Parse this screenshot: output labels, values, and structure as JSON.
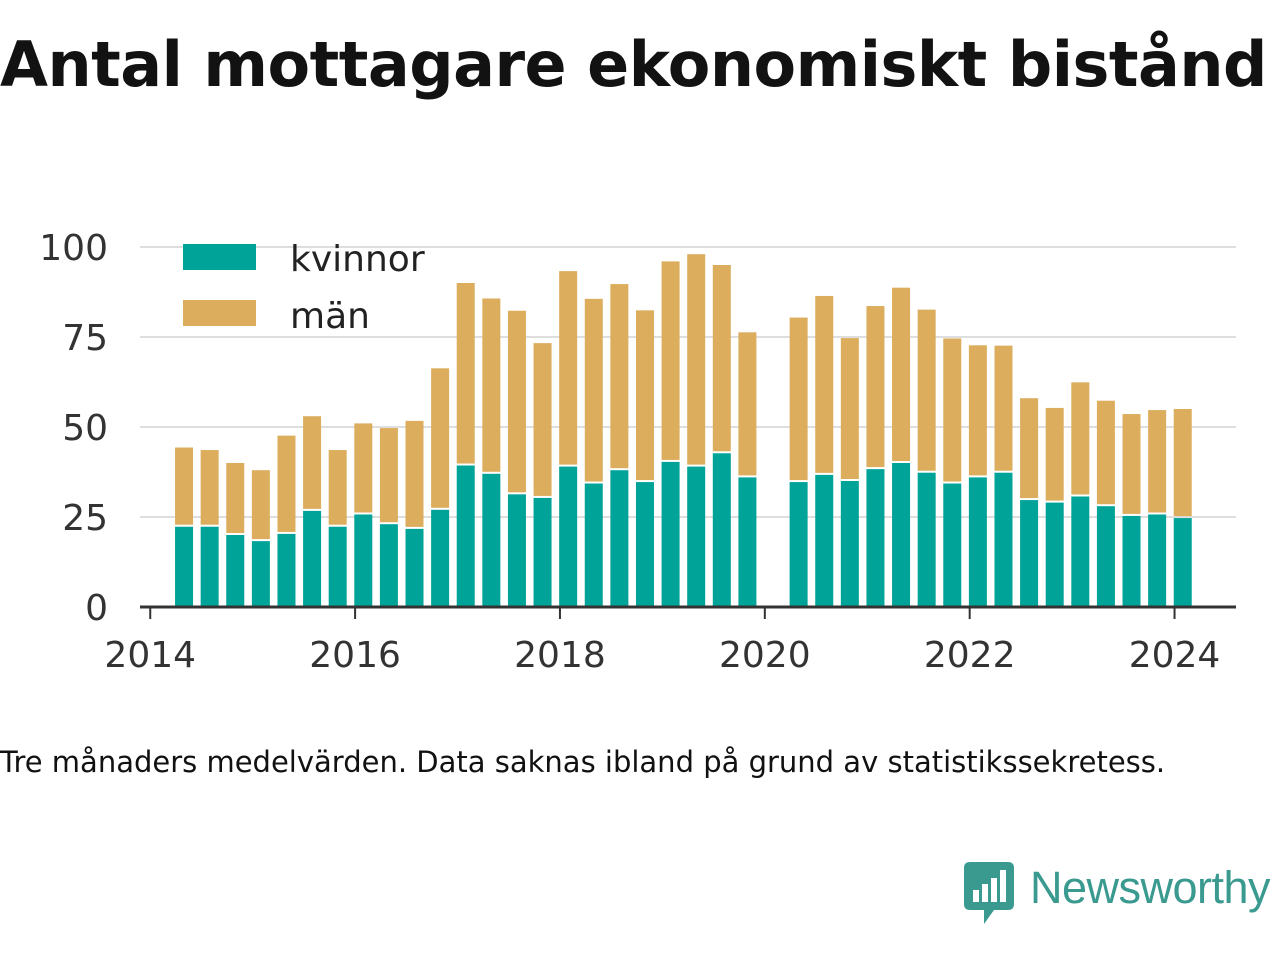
{
  "title": "Antal mottagare ekonomiskt bistånd",
  "caption": "Tre månaders medelvärden. Data saknas ibland på grund av statistikssekretess.",
  "brand": {
    "name": "Newsworthy",
    "color": "#3a9a8f",
    "icon": "newsworthy-logo-icon"
  },
  "colors": {
    "kvinnor": "#00a398",
    "man": "#dcad5d",
    "grid": "#dedede",
    "axis": "#333333"
  },
  "chart_data": {
    "type": "bar",
    "stacked": true,
    "title": "Antal mottagare ekonomiskt bistånd",
    "xlim": [
      2013.9,
      2024.6
    ],
    "ylim": [
      0,
      100
    ],
    "yticks": [
      0,
      25,
      50,
      75,
      100
    ],
    "xticks": [
      2014,
      2016,
      2018,
      2020,
      2022,
      2024
    ],
    "grid": true,
    "legend_position": "top-left",
    "x": [
      2014.33,
      2014.58,
      2014.83,
      2015.08,
      2015.33,
      2015.58,
      2015.83,
      2016.08,
      2016.33,
      2016.58,
      2016.83,
      2017.08,
      2017.33,
      2017.58,
      2017.83,
      2018.08,
      2018.33,
      2018.58,
      2018.83,
      2019.08,
      2019.33,
      2019.58,
      2019.83,
      2020.33,
      2020.58,
      2020.83,
      2021.08,
      2021.33,
      2021.58,
      2021.83,
      2022.08,
      2022.33,
      2022.58,
      2022.83,
      2023.08,
      2023.33,
      2023.58,
      2023.83,
      2024.08
    ],
    "series": [
      {
        "name": "kvinnor",
        "values": [
          22.3,
          22.3,
          20.0,
          18.3,
          20.3,
          26.7,
          22.3,
          25.7,
          23.0,
          21.7,
          27.0,
          39.3,
          37.0,
          31.3,
          30.3,
          39.0,
          34.3,
          38.0,
          34.7,
          40.3,
          39.0,
          42.7,
          36.0,
          34.7,
          36.7,
          35.0,
          38.3,
          40.0,
          37.3,
          34.3,
          36.0,
          37.3,
          29.7,
          29.0,
          30.7,
          28.0,
          25.3,
          25.7,
          24.7
        ]
      },
      {
        "name": "män",
        "values": [
          22.0,
          21.3,
          20.0,
          19.7,
          27.3,
          26.3,
          21.3,
          25.3,
          26.7,
          30.0,
          39.3,
          50.7,
          48.7,
          51.0,
          43.0,
          54.3,
          51.3,
          51.7,
          47.7,
          55.7,
          59.0,
          52.3,
          40.3,
          45.7,
          49.7,
          39.7,
          45.3,
          48.7,
          45.3,
          40.3,
          36.7,
          35.3,
          28.3,
          26.3,
          31.7,
          29.3,
          28.3,
          29.0,
          30.3
        ]
      }
    ]
  }
}
